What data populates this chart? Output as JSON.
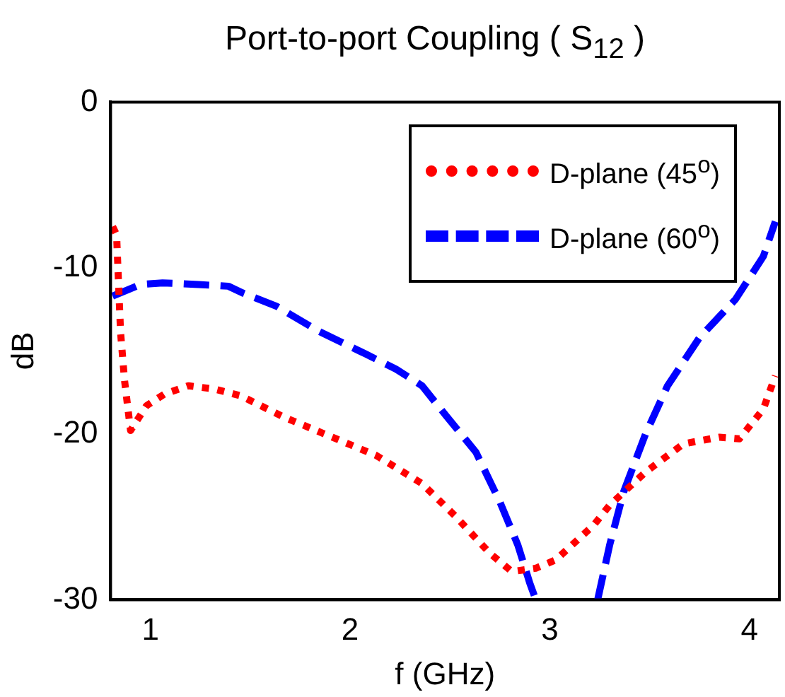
{
  "chart_data": {
    "type": "line",
    "title": "Port-to-port Coupling ( S$_{12}$ )",
    "xlabel": "f (GHz)",
    "ylabel": "dB",
    "xlim": [
      0.8,
      4.15
    ],
    "xticks": [
      1,
      2,
      3,
      4
    ],
    "ylim": [
      -30,
      0
    ],
    "yticks": [
      0,
      -10,
      -20,
      -30
    ],
    "grid": false,
    "legend": "top right",
    "marker": "none",
    "series": [
      {
        "name": "D-plane (45$^{o}$)",
        "color": "#ff0000",
        "line_style": "dotted",
        "x": [
          0.81,
          0.83,
          0.84,
          0.85,
          0.87,
          0.9,
          0.98,
          1.07,
          1.19,
          1.32,
          1.45,
          1.67,
          1.91,
          2.13,
          2.36,
          2.53,
          2.7,
          2.81,
          2.93,
          3.03,
          3.22,
          3.3,
          3.48,
          3.67,
          3.85,
          3.95,
          4.07,
          4.13
        ],
        "values": [
          -7.5,
          -8,
          -11,
          -13.9,
          -16.8,
          -19.8,
          -18.3,
          -17.6,
          -17.1,
          -17.3,
          -17.7,
          -19,
          -20.2,
          -21.3,
          -23,
          -25,
          -27.2,
          -28.3,
          -28.1,
          -27.6,
          -25.5,
          -24.3,
          -22.3,
          -20.6,
          -20.2,
          -20.3,
          -18.5,
          -16.5
        ]
      },
      {
        "name": "D-plane (60$^{o}$)",
        "color": "#0000ff",
        "line_style": "dashed",
        "x": [
          0.81,
          0.95,
          1.06,
          1.24,
          1.39,
          1.46,
          1.63,
          1.84,
          2.08,
          2.23,
          2.36,
          2.48,
          2.63,
          2.75,
          2.84,
          2.9,
          2.93,
          3.08,
          3.24,
          3.3,
          3.37,
          3.48,
          3.59,
          3.75,
          3.93,
          4.07,
          4.13
        ],
        "values": [
          -11.7,
          -11,
          -10.9,
          -11,
          -11.1,
          -11.5,
          -12.3,
          -13.8,
          -15.2,
          -16.1,
          -17.1,
          -18.9,
          -21.1,
          -24.1,
          -26.7,
          -29,
          -30,
          null,
          -30,
          -26.7,
          -23.5,
          -20,
          -17.1,
          -14.2,
          -11.9,
          -9.3,
          -7.2
        ]
      }
    ]
  }
}
